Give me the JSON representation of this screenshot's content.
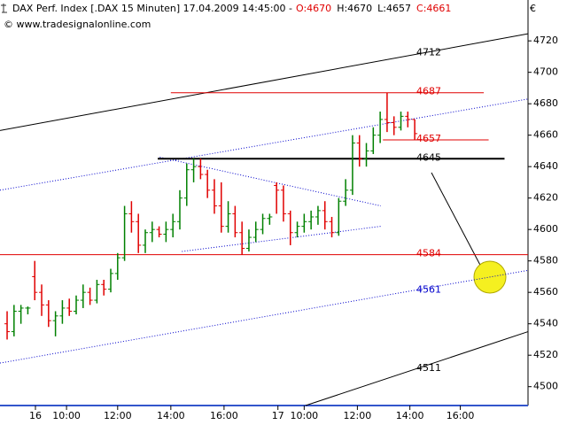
{
  "chart_data": {
    "type": "ohlc",
    "title": "DAX Perf. Index [.DAX  15 Minuten] 17.04.2009 14:45:00 -",
    "quote": [
      {
        "text": "O:4670",
        "color": "#e00000"
      },
      {
        "text": "H:4670",
        "color": "#000000"
      },
      {
        "text": "L:4657",
        "color": "#000000"
      },
      {
        "text": "C:4661",
        "color": "#e00000"
      }
    ],
    "source": "© www.tradesignalonline.com",
    "currency": "€",
    "up_color": "#008000",
    "down_color": "#e00000",
    "x": [
      0,
      1,
      2,
      3,
      4,
      5,
      6,
      7,
      8,
      9,
      10,
      11,
      12,
      13,
      14,
      15,
      16,
      17,
      18,
      19,
      20,
      21,
      22,
      23,
      24,
      25,
      26,
      27,
      28,
      29,
      30,
      31,
      32,
      33,
      34,
      35,
      36,
      37,
      38,
      39,
      40,
      41,
      42,
      43,
      44,
      45,
      46,
      47,
      48,
      49,
      50,
      51,
      52,
      53,
      54,
      55,
      56,
      57,
      58,
      59
    ],
    "open": [
      4540,
      4535,
      4548,
      4550,
      4570,
      4560,
      4552,
      4542,
      4545,
      4550,
      4548,
      4555,
      4560,
      4555,
      4565,
      4562,
      4572,
      4582,
      4610,
      4605,
      4590,
      4598,
      4600,
      4597,
      4600,
      4605,
      4620,
      4638,
      4640,
      4635,
      4625,
      4615,
      4602,
      4610,
      4598,
      4588,
      4595,
      4600,
      4607,
      4628,
      4625,
      4610,
      4598,
      4602,
      4605,
      4608,
      4612,
      4605,
      4598,
      4618,
      4625,
      4655,
      4645,
      4650,
      4660,
      4670,
      4668,
      4665,
      4672,
      4670
    ],
    "high": [
      4548,
      4552,
      4552,
      4551,
      4580,
      4565,
      4555,
      4548,
      4555,
      4556,
      4558,
      4565,
      4563,
      4568,
      4568,
      4575,
      4585,
      4615,
      4618,
      4610,
      4600,
      4605,
      4602,
      4605,
      4610,
      4625,
      4642,
      4645,
      4645,
      4638,
      4632,
      4630,
      4618,
      4615,
      4605,
      4600,
      4605,
      4610,
      4610,
      4630,
      4628,
      4612,
      4605,
      4610,
      4612,
      4615,
      4618,
      4608,
      4620,
      4632,
      4660,
      4660,
      4655,
      4665,
      4675,
      4687,
      4672,
      4675,
      4675,
      4670
    ],
    "low": [
      4530,
      4532,
      4540,
      4546,
      4555,
      4545,
      4538,
      4532,
      4540,
      4545,
      4546,
      4550,
      4552,
      4553,
      4558,
      4560,
      4568,
      4580,
      4598,
      4585,
      4585,
      4592,
      4595,
      4592,
      4595,
      4600,
      4615,
      4630,
      4632,
      4620,
      4610,
      4598,
      4598,
      4595,
      4584,
      4586,
      4592,
      4597,
      4603,
      4610,
      4605,
      4590,
      4595,
      4598,
      4600,
      4603,
      4600,
      4595,
      4596,
      4615,
      4622,
      4640,
      4640,
      4648,
      4655,
      4662,
      4660,
      4663,
      4665,
      4657
    ],
    "close": [
      4535,
      4548,
      4550,
      4550,
      4560,
      4552,
      4542,
      4545,
      4550,
      4548,
      4555,
      4560,
      4555,
      4565,
      4562,
      4572,
      4582,
      4610,
      4605,
      4590,
      4598,
      4600,
      4597,
      4600,
      4605,
      4620,
      4638,
      4640,
      4635,
      4625,
      4615,
      4602,
      4610,
      4598,
      4588,
      4595,
      4600,
      4607,
      4608,
      4625,
      4610,
      4598,
      4602,
      4605,
      4608,
      4612,
      4605,
      4598,
      4618,
      4625,
      4655,
      4645,
      4650,
      4660,
      4670,
      4668,
      4665,
      4672,
      4670,
      4661
    ],
    "xlim": [
      -1.03,
      75.4
    ],
    "ylim": [
      4488,
      4746
    ],
    "yticks": [
      4500,
      4520,
      4540,
      4560,
      4580,
      4600,
      4620,
      4640,
      4660,
      4680,
      4700,
      4720
    ],
    "xticks": [
      {
        "value": 4.1,
        "label": "16"
      },
      {
        "value": 8.6,
        "label": "10:00"
      },
      {
        "value": 16,
        "label": "12:00"
      },
      {
        "value": 23.7,
        "label": "14:00"
      },
      {
        "value": 31.4,
        "label": "16:00"
      },
      {
        "value": 39.2,
        "label": "17"
      },
      {
        "value": 43,
        "label": "10:00"
      },
      {
        "value": 50.7,
        "label": "12:00"
      },
      {
        "value": 58.3,
        "label": "14:00"
      },
      {
        "value": 65.6,
        "label": "16:00"
      }
    ],
    "lines": [
      {
        "color": "#000000",
        "width": 1,
        "dash": "none",
        "points": [
          [
            -1.03,
            4663
          ],
          [
            75.4,
            4724.5
          ]
        ]
      },
      {
        "color": "#000000",
        "width": 1,
        "dash": "none",
        "points": [
          [
            43.2,
            4488
          ],
          [
            75.4,
            4535
          ]
        ]
      },
      {
        "color": "#0000cc",
        "width": 1,
        "dash": "1,2",
        "points": [
          [
            -1.03,
            4625
          ],
          [
            75.4,
            4683
          ]
        ]
      },
      {
        "color": "#0000cc",
        "width": 1,
        "dash": "1,2",
        "points": [
          [
            -1.03,
            4515
          ],
          [
            75.4,
            4574
          ]
        ]
      },
      {
        "color": "#0000cc",
        "width": 1,
        "dash": "1,2",
        "points": [
          [
            22.1,
            4646
          ],
          [
            54.1,
            4615
          ]
        ]
      },
      {
        "color": "#0000cc",
        "width": 1,
        "dash": "1,2",
        "points": [
          [
            25.3,
            4586
          ],
          [
            54.1,
            4602
          ]
        ]
      },
      {
        "color": "#e00000",
        "width": 1,
        "dash": "none",
        "points": [
          [
            23.7,
            4687
          ],
          [
            69,
            4687
          ]
        ]
      },
      {
        "color": "#e00000",
        "width": 1,
        "dash": "none",
        "points": [
          [
            54.4,
            4657
          ],
          [
            69.7,
            4657
          ]
        ]
      },
      {
        "color": "#000000",
        "width": 2,
        "dash": "none",
        "points": [
          [
            21.8,
            4645
          ],
          [
            72,
            4645
          ]
        ]
      },
      {
        "color": "#e00000",
        "width": 1,
        "dash": "none",
        "points": [
          [
            -1.03,
            4584
          ],
          [
            75.4,
            4584
          ]
        ]
      }
    ],
    "levels": [
      {
        "value": 4712,
        "color": "#000000"
      },
      {
        "value": 4687,
        "color": "#e00000"
      },
      {
        "value": 4657,
        "color": "#e00000"
      },
      {
        "value": 4645,
        "color": "#000000"
      },
      {
        "value": 4584,
        "color": "#e00000"
      },
      {
        "value": 4561,
        "color": "#0000cc"
      },
      {
        "value": 4511,
        "color": "#000000"
      }
    ]
  }
}
